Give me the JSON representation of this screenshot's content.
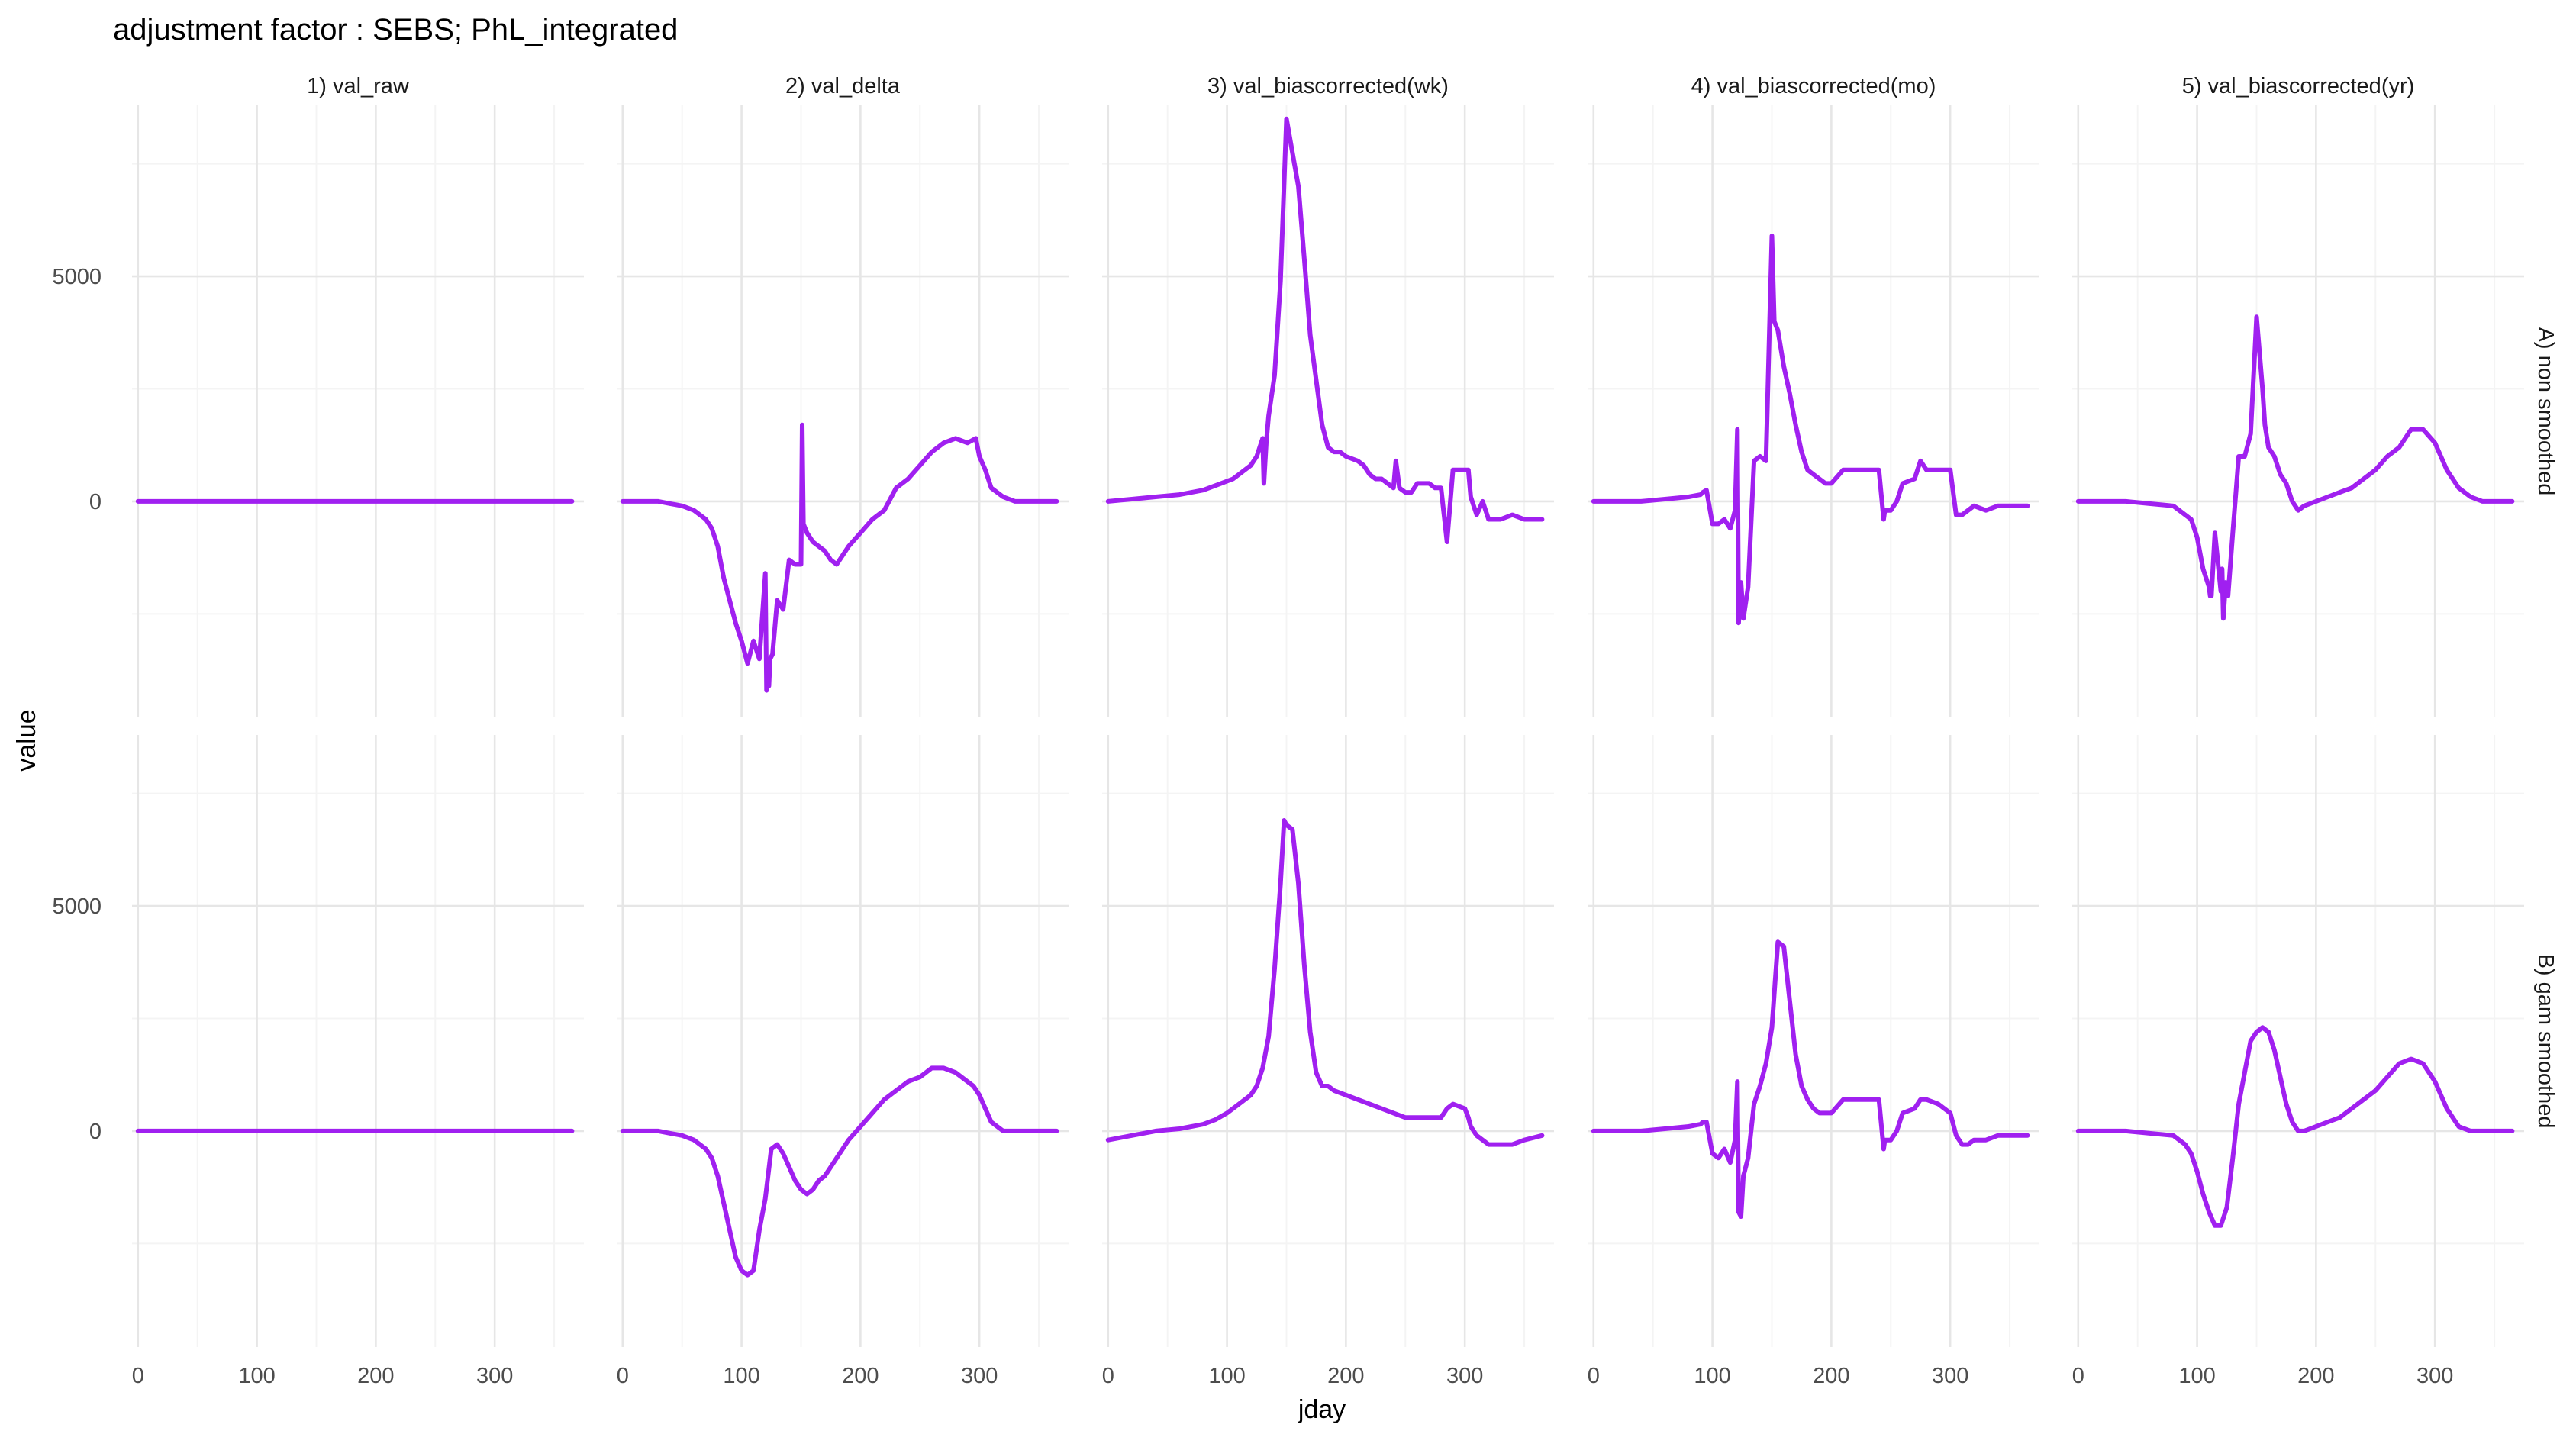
{
  "chart_data": {
    "type": "line",
    "title": "adjustment factor : SEBS; PhL_integrated",
    "xlabel": "jday",
    "ylabel": "value",
    "xlim": [
      -5,
      375
    ],
    "ylim": [
      -4800,
      8800
    ],
    "x_ticks": [
      0,
      100,
      200,
      300
    ],
    "y_ticks": [
      0,
      5000
    ],
    "grid": true,
    "line_color": "#A020F0",
    "columns": [
      "1) val_raw",
      "2) val_delta",
      "3) val_biascorrected(wk)",
      "4) val_biascorrected(mo)",
      "5) val_biascorrected(yr)"
    ],
    "rows": [
      "A) non smoothed",
      "B) gam smoothed"
    ],
    "panels": [
      {
        "row": 0,
        "col": 0,
        "x": [
          0,
          365
        ],
        "y": [
          0,
          0
        ]
      },
      {
        "row": 0,
        "col": 1,
        "x": [
          0,
          30,
          40,
          50,
          60,
          70,
          75,
          80,
          85,
          90,
          95,
          100,
          105,
          110,
          115,
          120,
          121,
          122,
          123,
          124,
          126,
          130,
          135,
          140,
          145,
          150,
          151,
          152,
          155,
          160,
          165,
          170,
          175,
          180,
          185,
          190,
          200,
          210,
          220,
          230,
          240,
          250,
          260,
          270,
          280,
          290,
          297,
          300,
          305,
          310,
          320,
          330,
          340,
          350,
          365
        ],
        "y": [
          0,
          0,
          -50,
          -100,
          -200,
          -400,
          -600,
          -1000,
          -1700,
          -2200,
          -2700,
          -3100,
          -3600,
          -3100,
          -3500,
          -1600,
          -4200,
          -3500,
          -4100,
          -3500,
          -3400,
          -2200,
          -2400,
          -1300,
          -1400,
          -1400,
          1700,
          -500,
          -700,
          -900,
          -1000,
          -1100,
          -1300,
          -1400,
          -1200,
          -1000,
          -700,
          -400,
          -200,
          300,
          500,
          800,
          1100,
          1300,
          1400,
          1300,
          1400,
          1000,
          700,
          300,
          100,
          0,
          0,
          0,
          0
        ]
      },
      {
        "row": 0,
        "col": 2,
        "x": [
          0,
          20,
          40,
          60,
          80,
          95,
          105,
          110,
          115,
          120,
          125,
          130,
          131,
          133,
          135,
          140,
          145,
          150,
          160,
          165,
          170,
          175,
          180,
          185,
          190,
          195,
          200,
          210,
          215,
          220,
          225,
          230,
          240,
          242,
          245,
          250,
          255,
          260,
          270,
          275,
          280,
          285,
          290,
          300,
          303,
          305,
          310,
          315,
          320,
          330,
          340,
          350,
          365
        ],
        "y": [
          0,
          50,
          100,
          150,
          250,
          400,
          500,
          600,
          700,
          800,
          1000,
          1400,
          400,
          1300,
          1900,
          2800,
          4900,
          8500,
          7000,
          5400,
          3700,
          2700,
          1700,
          1200,
          1100,
          1100,
          1000,
          900,
          800,
          600,
          500,
          500,
          300,
          900,
          300,
          200,
          200,
          400,
          400,
          300,
          300,
          -900,
          700,
          700,
          700,
          100,
          -300,
          0,
          -400,
          -400,
          -300,
          -400,
          -400
        ]
      },
      {
        "row": 0,
        "col": 3,
        "x": [
          0,
          40,
          60,
          80,
          90,
          92,
          95,
          100,
          105,
          110,
          115,
          119,
          121,
          122,
          124,
          126,
          130,
          135,
          140,
          145,
          150,
          152,
          155,
          160,
          165,
          170,
          175,
          180,
          185,
          190,
          195,
          200,
          210,
          220,
          230,
          240,
          244,
          245,
          250,
          255,
          260,
          270,
          275,
          280,
          290,
          300,
          305,
          310,
          315,
          320,
          330,
          340,
          350,
          365
        ],
        "y": [
          0,
          0,
          50,
          100,
          150,
          200,
          250,
          -500,
          -500,
          -400,
          -600,
          -200,
          1600,
          -2700,
          -1800,
          -2600,
          -1900,
          900,
          1000,
          900,
          5900,
          4000,
          3800,
          3000,
          2400,
          1700,
          1100,
          700,
          600,
          500,
          400,
          400,
          700,
          700,
          700,
          700,
          -400,
          -200,
          -200,
          0,
          400,
          500,
          900,
          700,
          700,
          700,
          -300,
          -300,
          -200,
          -100,
          -200,
          -100,
          -100,
          -100
        ]
      },
      {
        "row": 0,
        "col": 4,
        "x": [
          0,
          40,
          60,
          80,
          95,
          100,
          105,
          110,
          111,
          112,
          115,
          120,
          121,
          122,
          124,
          126,
          130,
          135,
          140,
          145,
          150,
          155,
          157,
          160,
          165,
          170,
          175,
          180,
          185,
          190,
          200,
          210,
          220,
          230,
          240,
          250,
          260,
          270,
          275,
          280,
          290,
          300,
          310,
          320,
          330,
          340,
          350,
          365
        ],
        "y": [
          0,
          0,
          -50,
          -100,
          -400,
          -800,
          -1500,
          -1900,
          -2100,
          -2100,
          -700,
          -2000,
          -1500,
          -2600,
          -1800,
          -2100,
          -700,
          1000,
          1000,
          1500,
          4100,
          2500,
          1700,
          1200,
          1000,
          600,
          400,
          0,
          -200,
          -100,
          0,
          100,
          200,
          300,
          500,
          700,
          1000,
          1200,
          1400,
          1600,
          1600,
          1300,
          700,
          300,
          100,
          0,
          0,
          0
        ]
      },
      {
        "row": 1,
        "col": 0,
        "x": [
          0,
          365
        ],
        "y": [
          0,
          0
        ]
      },
      {
        "row": 1,
        "col": 1,
        "x": [
          0,
          30,
          40,
          50,
          60,
          70,
          75,
          80,
          85,
          90,
          95,
          100,
          105,
          110,
          115,
          120,
          125,
          130,
          135,
          140,
          145,
          150,
          155,
          160,
          165,
          170,
          175,
          180,
          185,
          190,
          200,
          210,
          220,
          230,
          240,
          250,
          260,
          270,
          280,
          290,
          295,
          300,
          305,
          310,
          320,
          330,
          340,
          350,
          365
        ],
        "y": [
          0,
          0,
          -50,
          -100,
          -200,
          -400,
          -600,
          -1000,
          -1600,
          -2200,
          -2800,
          -3100,
          -3200,
          -3100,
          -2200,
          -1500,
          -400,
          -300,
          -500,
          -800,
          -1100,
          -1300,
          -1400,
          -1300,
          -1100,
          -1000,
          -800,
          -600,
          -400,
          -200,
          100,
          400,
          700,
          900,
          1100,
          1200,
          1400,
          1400,
          1300,
          1100,
          1000,
          800,
          500,
          200,
          0,
          0,
          0,
          0,
          0
        ]
      },
      {
        "row": 1,
        "col": 2,
        "x": [
          0,
          20,
          40,
          60,
          80,
          90,
          100,
          105,
          110,
          115,
          120,
          125,
          130,
          135,
          140,
          145,
          148,
          150,
          155,
          160,
          165,
          170,
          175,
          180,
          185,
          190,
          200,
          210,
          220,
          230,
          240,
          250,
          260,
          270,
          280,
          285,
          290,
          300,
          303,
          305,
          310,
          315,
          320,
          330,
          340,
          350,
          365
        ],
        "y": [
          -200,
          -100,
          0,
          50,
          150,
          250,
          400,
          500,
          600,
          700,
          800,
          1000,
          1400,
          2100,
          3600,
          5500,
          6900,
          6800,
          6700,
          5500,
          3700,
          2200,
          1300,
          1000,
          1000,
          900,
          800,
          700,
          600,
          500,
          400,
          300,
          300,
          300,
          300,
          500,
          600,
          500,
          300,
          100,
          -100,
          -200,
          -300,
          -300,
          -300,
          -200,
          -100
        ]
      },
      {
        "row": 1,
        "col": 3,
        "x": [
          0,
          40,
          60,
          80,
          90,
          92,
          95,
          100,
          105,
          110,
          115,
          119,
          121,
          122,
          124,
          126,
          130,
          135,
          140,
          145,
          150,
          155,
          160,
          165,
          170,
          175,
          180,
          185,
          190,
          200,
          210,
          220,
          230,
          240,
          244,
          245,
          250,
          255,
          260,
          270,
          275,
          280,
          290,
          300,
          305,
          310,
          315,
          320,
          330,
          340,
          350,
          365
        ],
        "y": [
          0,
          0,
          50,
          100,
          150,
          200,
          200,
          -500,
          -600,
          -400,
          -700,
          -200,
          1100,
          -1800,
          -1900,
          -1000,
          -600,
          600,
          1000,
          1500,
          2300,
          4200,
          4100,
          2900,
          1700,
          1000,
          700,
          500,
          400,
          400,
          700,
          700,
          700,
          700,
          -400,
          -200,
          -200,
          0,
          400,
          500,
          700,
          700,
          600,
          400,
          -100,
          -300,
          -300,
          -200,
          -200,
          -100,
          -100,
          -100
        ]
      },
      {
        "row": 1,
        "col": 4,
        "x": [
          0,
          40,
          60,
          80,
          90,
          95,
          100,
          105,
          110,
          115,
          120,
          125,
          130,
          135,
          140,
          145,
          150,
          155,
          160,
          165,
          170,
          175,
          180,
          185,
          190,
          200,
          210,
          220,
          230,
          240,
          250,
          260,
          270,
          280,
          290,
          300,
          310,
          320,
          330,
          340,
          350,
          365
        ],
        "y": [
          0,
          0,
          -50,
          -100,
          -300,
          -500,
          -900,
          -1400,
          -1800,
          -2100,
          -2100,
          -1700,
          -600,
          600,
          1300,
          2000,
          2200,
          2300,
          2200,
          1800,
          1200,
          600,
          200,
          0,
          0,
          100,
          200,
          300,
          500,
          700,
          900,
          1200,
          1500,
          1600,
          1500,
          1100,
          500,
          100,
          0,
          0,
          0,
          0
        ]
      }
    ]
  }
}
